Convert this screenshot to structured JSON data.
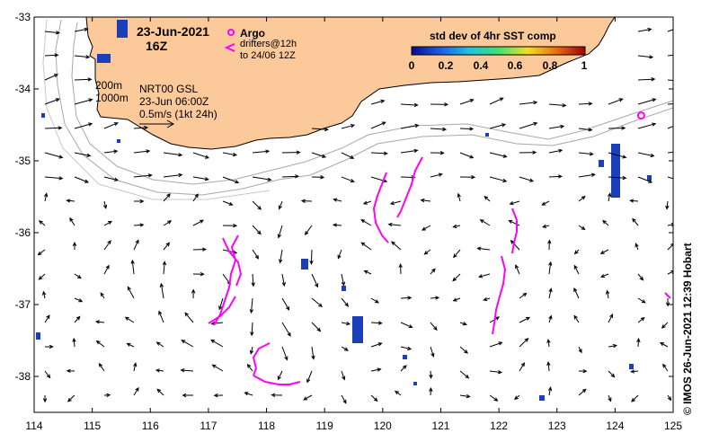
{
  "title": {
    "date": "23-Jun-2021",
    "hour": "16Z"
  },
  "legend": {
    "argo_label": "Argo",
    "drifters_line1": "drifters@12h",
    "drifters_line2": "to 24/06 12Z"
  },
  "colorbar": {
    "title": "std dev of 4hr SST comp",
    "ticks": [
      "0",
      "0.2",
      "0.4",
      "0.6",
      "0.8",
      "1"
    ],
    "colors": [
      "#0a0a8c",
      "#1f5fe8",
      "#1fc0e0",
      "#40e070",
      "#f0e020",
      "#f07010",
      "#a00000"
    ]
  },
  "info": {
    "depth1": "200m",
    "depth2": "1000m",
    "product": "NRT00 GSL",
    "time": "23-Jun 06:00Z",
    "scale_text": "0.5m/s (1kt 24h)"
  },
  "credit": "© IMOS 26-Jun-2021 12:39 Hobart",
  "colors": {
    "land": "#fbc99a",
    "contour": "#a8a8a8",
    "drifter": "#ff00ff",
    "sst_patch": "#1a3fb8"
  },
  "map": {
    "lon_range": [
      114,
      125
    ],
    "lat_range": [
      -38.5,
      -33
    ],
    "x_ticks": [
      "114",
      "115",
      "116",
      "117",
      "118",
      "119",
      "120",
      "121",
      "122",
      "123",
      "124",
      "125"
    ],
    "y_ticks": [
      "-33",
      "-34",
      "-35",
      "-36",
      "-37",
      "-38"
    ],
    "argo_float": {
      "lon": 124.45,
      "lat": -34.37
    }
  }
}
